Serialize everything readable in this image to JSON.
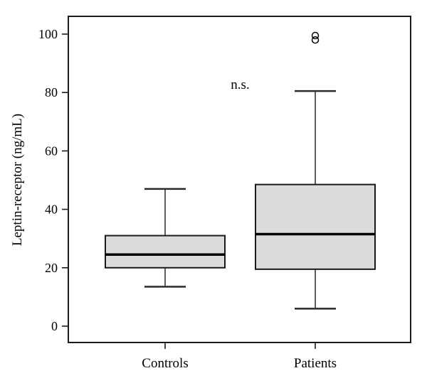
{
  "figure": {
    "background": "#ffffff",
    "frame_color": "#1a1a1a",
    "box_fill": "#dcdcdc",
    "box_stroke": "#1a1a1a",
    "median_color": "#000000",
    "whisker_color": "#2a2a2a",
    "text_color": "#000000"
  },
  "chart_data": {
    "type": "box",
    "title": "",
    "xlabel": "",
    "ylabel": "Leptin-receptor (ng/mL)",
    "categories": [
      "Controls",
      "Patients"
    ],
    "yticks": [
      0,
      20,
      40,
      60,
      80,
      100
    ],
    "ylim": [
      -5.6,
      106
    ],
    "grid": false,
    "legend": false,
    "annotation": {
      "text": "n.s.",
      "y_value": 83
    },
    "series": [
      {
        "name": "Controls",
        "whisker_low": 13.5,
        "q1": 20,
        "median": 24.5,
        "q3": 31,
        "whisker_high": 47,
        "outliers": []
      },
      {
        "name": "Patients",
        "whisker_low": 6,
        "q1": 19.5,
        "median": 31.5,
        "q3": 48.5,
        "whisker_high": 80.5,
        "outliers": [
          98,
          99.5
        ]
      }
    ]
  }
}
